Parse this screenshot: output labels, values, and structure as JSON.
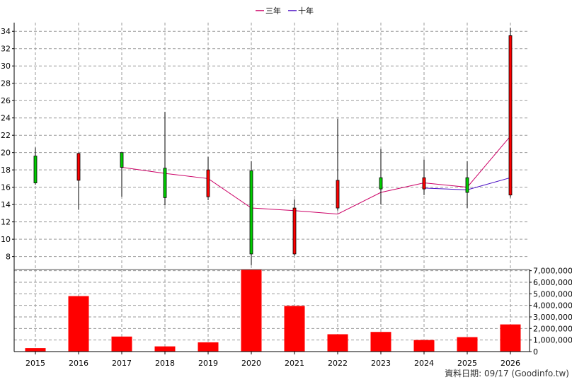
{
  "legend": [
    {
      "label": "三年",
      "color": "#cc0066"
    },
    {
      "label": "十年",
      "color": "#4b0fc4"
    }
  ],
  "footer": {
    "text": "資料日期: 09/17  (Goodinfo.tw)"
  },
  "colors": {
    "up": "#ff0000",
    "down": "#00cc00",
    "volume": "#ff0000",
    "grid": "#9a9a9a"
  },
  "chart_data": [
    {
      "type": "candlestick",
      "categories": [
        "2015",
        "2016",
        "2017",
        "2018",
        "2019",
        "2020",
        "2021",
        "2022",
        "2023",
        "2024",
        "2025",
        "2026"
      ],
      "ylim": [
        6.5,
        35
      ],
      "yticks": [
        8,
        10,
        12,
        14,
        16,
        18,
        20,
        22,
        24,
        26,
        28,
        30,
        32,
        34
      ],
      "grid": true,
      "ohlc": [
        {
          "open": 19.6,
          "high": 20.6,
          "low": 16.3,
          "close": 16.5
        },
        {
          "open": 16.8,
          "high": 20.0,
          "low": 13.4,
          "close": 19.9
        },
        {
          "open": 20.0,
          "high": 20.0,
          "low": 14.9,
          "close": 18.3
        },
        {
          "open": 18.2,
          "high": 24.7,
          "low": 13.9,
          "close": 14.8
        },
        {
          "open": 14.9,
          "high": 19.5,
          "low": 14.5,
          "close": 18.0
        },
        {
          "open": 17.9,
          "high": 19.0,
          "low": 7.0,
          "close": 8.3
        },
        {
          "open": 8.3,
          "high": 14.6,
          "low": 8.1,
          "close": 13.6
        },
        {
          "open": 13.6,
          "high": 23.9,
          "low": 13.3,
          "close": 16.8
        },
        {
          "open": 17.1,
          "high": 20.4,
          "low": 14.0,
          "close": 15.8
        },
        {
          "open": 15.8,
          "high": 19.2,
          "low": 15.1,
          "close": 17.1
        },
        {
          "open": 17.1,
          "high": 19.0,
          "low": 13.6,
          "close": 15.4
        },
        {
          "open": 15.1,
          "high": 34.4,
          "low": 14.8,
          "close": 33.5
        }
      ],
      "series": [
        {
          "name": "三年",
          "values": [
            null,
            null,
            18.3,
            17.6,
            17.0,
            13.6,
            13.3,
            12.9,
            15.4,
            16.5,
            16.0,
            21.9
          ]
        },
        {
          "name": "十年",
          "values": [
            null,
            null,
            null,
            null,
            null,
            null,
            null,
            null,
            null,
            15.9,
            15.7,
            17.1
          ]
        }
      ]
    },
    {
      "type": "bar",
      "categories": [
        "2015",
        "2016",
        "2017",
        "2018",
        "2019",
        "2020",
        "2021",
        "2022",
        "2023",
        "2024",
        "2025",
        "2026"
      ],
      "values": [
        300000,
        4800000,
        1300000,
        450000,
        800000,
        7100000,
        3950000,
        1500000,
        1700000,
        1000000,
        1250000,
        2350000
      ],
      "ylim": [
        0,
        7100000
      ],
      "yticks": [
        0,
        1000000,
        2000000,
        3000000,
        4000000,
        5000000,
        6000000,
        7000000
      ],
      "ytick_labels": [
        "0",
        "1,000,000",
        "2,000,000",
        "3,000,000",
        "4,000,000",
        "5,000,000",
        "6,000,000",
        "7,000,000"
      ],
      "grid": true
    }
  ]
}
